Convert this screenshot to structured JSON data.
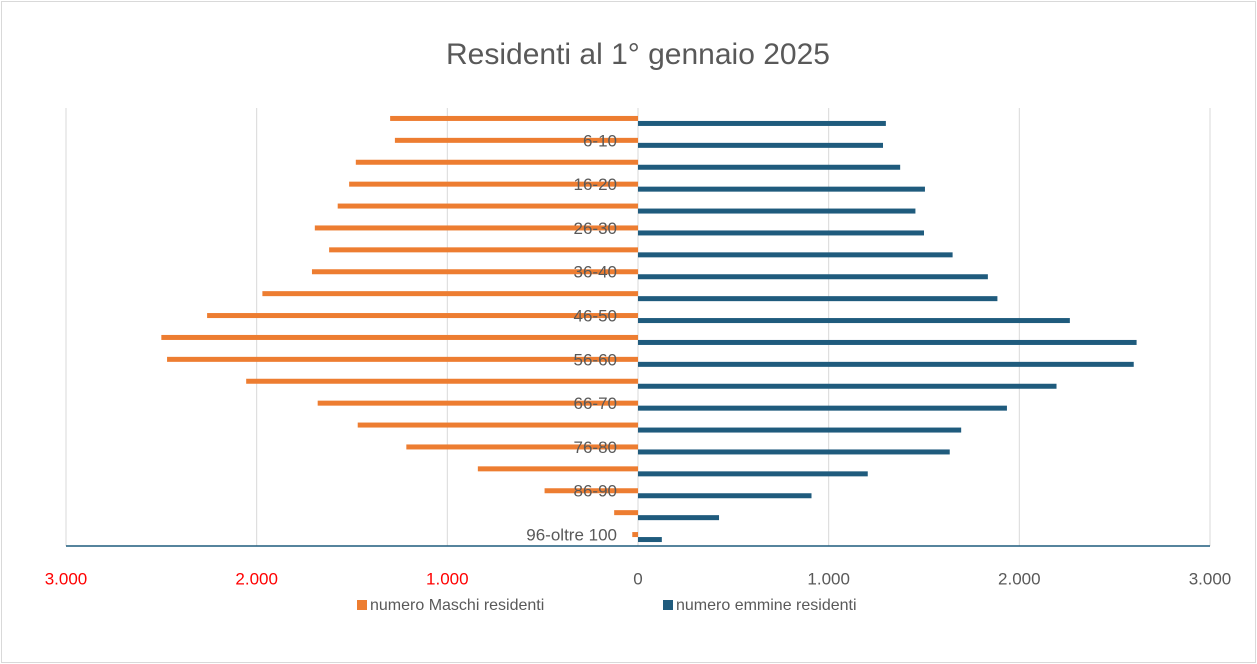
{
  "chart_data": {
    "type": "bar",
    "orientation": "horizontal",
    "stacked": false,
    "title": "Residenti al 1° gennaio 2025",
    "categories": [
      null,
      "6-10",
      null,
      "16-20",
      null,
      "26-30",
      null,
      "36-40",
      null,
      "46-50",
      null,
      "56-60",
      null,
      "66-70",
      null,
      "76-80",
      null,
      "86-90",
      null,
      "96-oltre 100"
    ],
    "series": [
      {
        "name": "numero Maschi residenti",
        "color": "#ed7d31",
        "values": [
          -1300,
          -1275,
          -1480,
          -1515,
          -1575,
          -1695,
          -1620,
          -1710,
          -1970,
          -2260,
          -2500,
          -2470,
          -2055,
          -1680,
          -1470,
          -1215,
          -840,
          -490,
          -125,
          -30
        ]
      },
      {
        "name": "numero emmine residenti",
        "color": "#1f5b7d",
        "values": [
          1300,
          1285,
          1375,
          1505,
          1455,
          1500,
          1650,
          1835,
          1885,
          2265,
          2615,
          2600,
          2195,
          1935,
          1695,
          1635,
          1205,
          910,
          425,
          125
        ]
      }
    ],
    "xlim": [
      -3000,
      3000
    ],
    "xticks": [
      {
        "value": -3000,
        "label": "3.000"
      },
      {
        "value": -2000,
        "label": "2.000"
      },
      {
        "value": -1000,
        "label": "1.000"
      },
      0,
      {
        "value": 1000,
        "label": "1.000"
      },
      {
        "value": 2000,
        "label": "2.000"
      },
      {
        "value": 3000,
        "label": "3.000"
      }
    ],
    "negative_tick_color": "#ff0000",
    "grid": true,
    "legend": "bottom"
  }
}
